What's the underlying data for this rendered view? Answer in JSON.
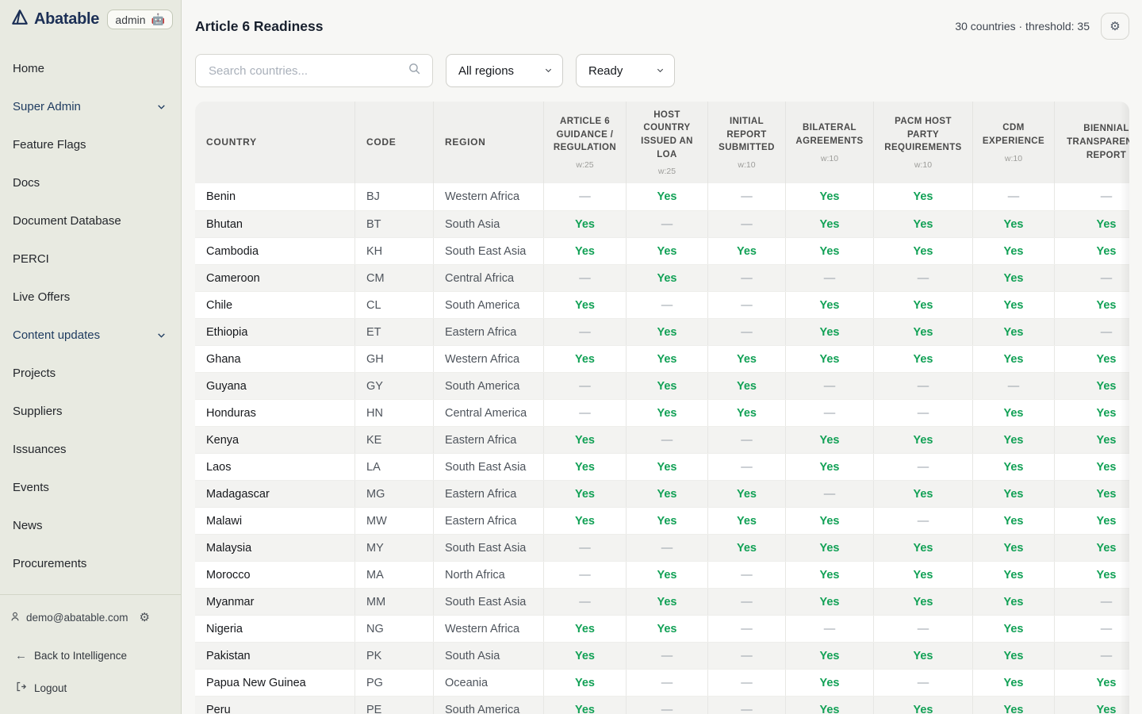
{
  "colors": {
    "sidebar_bg": "#e8eae1",
    "navy": "#1b2f55",
    "green_yes": "#12a156",
    "dash_gray": "#9aa1a9",
    "page_bg": "#f7f7f5"
  },
  "icons": {
    "logo": "abatable-triangle-mark",
    "robot": "🤖",
    "chevron_down": "⌄",
    "search": "magnifier",
    "gear": "⚙",
    "person": "person-silhouette",
    "back_arrow": "←",
    "logout": "door-exit-arrow"
  },
  "sidebar": {
    "logo_text": "Abatable",
    "admin_badge": {
      "label": "admin",
      "emoji": "🤖"
    },
    "items": [
      {
        "label": "Home",
        "chevron": false,
        "section": false
      },
      {
        "label": "Super Admin",
        "chevron": true,
        "section": true
      },
      {
        "label": "Feature Flags",
        "chevron": false,
        "section": false
      },
      {
        "label": "Docs",
        "chevron": false,
        "section": false
      },
      {
        "label": "Document Database",
        "chevron": false,
        "section": false
      },
      {
        "label": "PERCI",
        "chevron": false,
        "section": false
      },
      {
        "label": "Live Offers",
        "chevron": false,
        "section": false
      },
      {
        "label": "Content updates",
        "chevron": true,
        "section": true
      },
      {
        "label": "Projects",
        "chevron": false,
        "section": false
      },
      {
        "label": "Suppliers",
        "chevron": false,
        "section": false
      },
      {
        "label": "Issuances",
        "chevron": false,
        "section": false
      },
      {
        "label": "Events",
        "chevron": false,
        "section": false
      },
      {
        "label": "News",
        "chevron": false,
        "section": false
      },
      {
        "label": "Procurements",
        "chevron": false,
        "section": false
      }
    ],
    "footer": {
      "email": "demo@abatable.com",
      "back_label": "Back to Intelligence",
      "logout_label": "Logout"
    }
  },
  "header": {
    "title": "Article 6 Readiness",
    "summary": "30 countries · threshold: 35"
  },
  "filters": {
    "search_placeholder": "Search countries...",
    "region_selected": "All regions",
    "status_selected": "Ready"
  },
  "table": {
    "columns": [
      {
        "label": "COUNTRY",
        "weight": ""
      },
      {
        "label": "CODE",
        "weight": ""
      },
      {
        "label": "REGION",
        "weight": ""
      },
      {
        "label": "ARTICLE 6 GUIDANCE / REGULATION",
        "weight": "w:25"
      },
      {
        "label": "HOST COUNTRY ISSUED AN LOA",
        "weight": "w:25"
      },
      {
        "label": "INITIAL REPORT SUBMITTED",
        "weight": "w:10"
      },
      {
        "label": "BILATERAL AGREEMENTS",
        "weight": "w:10"
      },
      {
        "label": "PACM HOST PARTY REQUIREMENTS",
        "weight": "w:10"
      },
      {
        "label": "CDM EXPERIENCE",
        "weight": "w:10"
      },
      {
        "label": "BIENNIAL TRANSPARENCY REPORT",
        "weight": ""
      }
    ],
    "rows": [
      {
        "country": "Benin",
        "code": "BJ",
        "region": "Western Africa",
        "indicators": [
          "—",
          "Yes",
          "—",
          "Yes",
          "Yes",
          "—",
          "—"
        ]
      },
      {
        "country": "Bhutan",
        "code": "BT",
        "region": "South Asia",
        "indicators": [
          "Yes",
          "—",
          "—",
          "Yes",
          "Yes",
          "Yes",
          "Yes"
        ]
      },
      {
        "country": "Cambodia",
        "code": "KH",
        "region": "South East Asia",
        "indicators": [
          "Yes",
          "Yes",
          "Yes",
          "Yes",
          "Yes",
          "Yes",
          "Yes"
        ]
      },
      {
        "country": "Cameroon",
        "code": "CM",
        "region": "Central Africa",
        "indicators": [
          "—",
          "Yes",
          "—",
          "—",
          "—",
          "Yes",
          "—"
        ]
      },
      {
        "country": "Chile",
        "code": "CL",
        "region": "South America",
        "indicators": [
          "Yes",
          "—",
          "—",
          "Yes",
          "Yes",
          "Yes",
          "Yes"
        ]
      },
      {
        "country": "Ethiopia",
        "code": "ET",
        "region": "Eastern Africa",
        "indicators": [
          "—",
          "Yes",
          "—",
          "Yes",
          "Yes",
          "Yes",
          "—"
        ]
      },
      {
        "country": "Ghana",
        "code": "GH",
        "region": "Western Africa",
        "indicators": [
          "Yes",
          "Yes",
          "Yes",
          "Yes",
          "Yes",
          "Yes",
          "Yes"
        ]
      },
      {
        "country": "Guyana",
        "code": "GY",
        "region": "South America",
        "indicators": [
          "—",
          "Yes",
          "Yes",
          "—",
          "—",
          "—",
          "Yes"
        ]
      },
      {
        "country": "Honduras",
        "code": "HN",
        "region": "Central America",
        "indicators": [
          "—",
          "Yes",
          "Yes",
          "—",
          "—",
          "Yes",
          "Yes"
        ]
      },
      {
        "country": "Kenya",
        "code": "KE",
        "region": "Eastern Africa",
        "indicators": [
          "Yes",
          "—",
          "—",
          "Yes",
          "Yes",
          "Yes",
          "Yes"
        ]
      },
      {
        "country": "Laos",
        "code": "LA",
        "region": "South East Asia",
        "indicators": [
          "Yes",
          "Yes",
          "—",
          "Yes",
          "—",
          "Yes",
          "Yes"
        ]
      },
      {
        "country": "Madagascar",
        "code": "MG",
        "region": "Eastern Africa",
        "indicators": [
          "Yes",
          "Yes",
          "Yes",
          "—",
          "Yes",
          "Yes",
          "Yes"
        ]
      },
      {
        "country": "Malawi",
        "code": "MW",
        "region": "Eastern Africa",
        "indicators": [
          "Yes",
          "Yes",
          "Yes",
          "Yes",
          "—",
          "Yes",
          "Yes"
        ]
      },
      {
        "country": "Malaysia",
        "code": "MY",
        "region": "South East Asia",
        "indicators": [
          "—",
          "—",
          "Yes",
          "Yes",
          "Yes",
          "Yes",
          "Yes"
        ]
      },
      {
        "country": "Morocco",
        "code": "MA",
        "region": "North Africa",
        "indicators": [
          "—",
          "Yes",
          "—",
          "Yes",
          "Yes",
          "Yes",
          "Yes"
        ]
      },
      {
        "country": "Myanmar",
        "code": "MM",
        "region": "South East Asia",
        "indicators": [
          "—",
          "Yes",
          "—",
          "Yes",
          "Yes",
          "Yes",
          "—"
        ]
      },
      {
        "country": "Nigeria",
        "code": "NG",
        "region": "Western Africa",
        "indicators": [
          "Yes",
          "Yes",
          "—",
          "—",
          "—",
          "Yes",
          "—"
        ]
      },
      {
        "country": "Pakistan",
        "code": "PK",
        "region": "South Asia",
        "indicators": [
          "Yes",
          "—",
          "—",
          "Yes",
          "Yes",
          "Yes",
          "—"
        ]
      },
      {
        "country": "Papua New Guinea",
        "code": "PG",
        "region": "Oceania",
        "indicators": [
          "Yes",
          "—",
          "—",
          "Yes",
          "—",
          "Yes",
          "Yes"
        ]
      },
      {
        "country": "Peru",
        "code": "PE",
        "region": "South America",
        "indicators": [
          "Yes",
          "—",
          "—",
          "Yes",
          "Yes",
          "Yes",
          "Yes"
        ]
      }
    ]
  }
}
